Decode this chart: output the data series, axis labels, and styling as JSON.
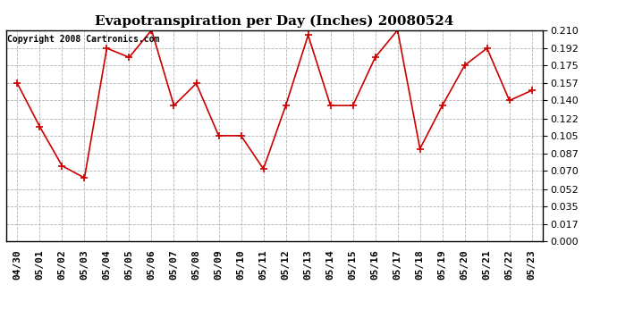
{
  "title": "Evapotranspiration per Day (Inches) 20080524",
  "copyright_text": "Copyright 2008 Cartronics.com",
  "dates": [
    "04/30",
    "05/01",
    "05/02",
    "05/03",
    "05/04",
    "05/05",
    "05/06",
    "05/07",
    "05/08",
    "05/09",
    "05/10",
    "05/11",
    "05/12",
    "05/13",
    "05/14",
    "05/15",
    "05/16",
    "05/17",
    "05/18",
    "05/19",
    "05/20",
    "05/21",
    "05/22",
    "05/23"
  ],
  "values": [
    0.157,
    0.114,
    0.075,
    0.063,
    0.192,
    0.183,
    0.21,
    0.135,
    0.157,
    0.105,
    0.105,
    0.072,
    0.135,
    0.205,
    0.135,
    0.135,
    0.183,
    0.21,
    0.092,
    0.135,
    0.175,
    0.192,
    0.14,
    0.15
  ],
  "line_color": "#cc0000",
  "marker": "+",
  "marker_size": 6,
  "ylim": [
    0.0,
    0.21
  ],
  "yticks": [
    0.0,
    0.017,
    0.035,
    0.052,
    0.07,
    0.087,
    0.105,
    0.122,
    0.14,
    0.157,
    0.175,
    0.192,
    0.21
  ],
  "background_color": "#ffffff",
  "grid_color": "#aaaaaa",
  "title_fontsize": 11,
  "tick_fontsize": 8,
  "copyright_fontsize": 7
}
